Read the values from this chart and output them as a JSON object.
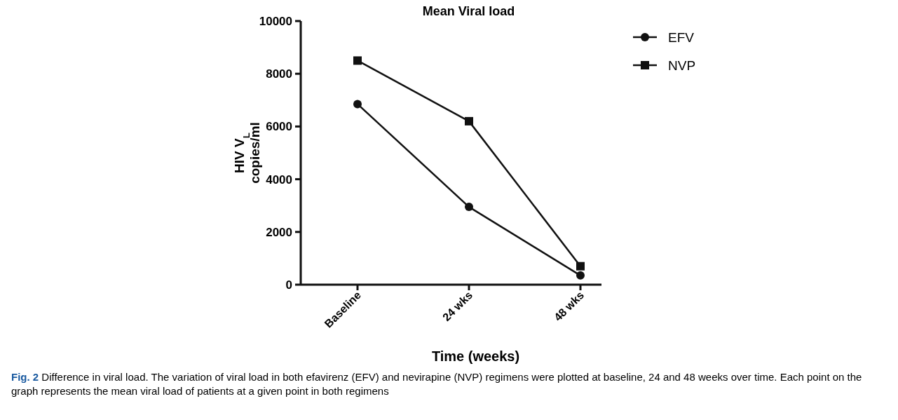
{
  "chart_data": {
    "type": "line",
    "title": "Mean Viral load",
    "xlabel": "Time (weeks)",
    "ylabel": "HIV V$_{L}$\ncopies/ml",
    "categories": [
      "Baseline",
      "24 wks",
      "48 wks"
    ],
    "series": [
      {
        "name": "EFV",
        "color": "#111111",
        "marker": "circle",
        "values": [
          6850,
          2950,
          350
        ]
      },
      {
        "name": "NVP",
        "color": "#111111",
        "marker": "square",
        "values": [
          8500,
          6200,
          700
        ]
      }
    ],
    "ylim": [
      0,
      10000
    ],
    "yticks": [
      0,
      2000,
      4000,
      6000,
      8000,
      10000
    ],
    "grid": false,
    "legend": "top right",
    "annotations": [
      "Fig. 2 Difference in viral load. The variation of viral load in both efavirenz (EFV) and nevirapine (NVP) regimens were plotted at baseline, 24 and 48 weeks over time. Each point on the graph represents the mean viral load of patients at a given point in both regimens"
    ]
  }
}
